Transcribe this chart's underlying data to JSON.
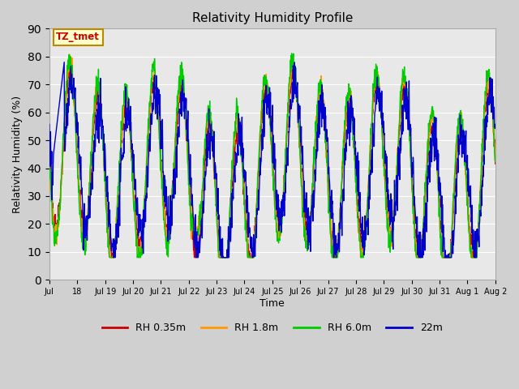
{
  "title": "Relativity Humidity Profile",
  "xlabel": "Time",
  "ylabel": "Relativity Humidity (%)",
  "ylim": [
    0,
    90
  ],
  "yticks": [
    0,
    10,
    20,
    30,
    40,
    50,
    60,
    70,
    80,
    90
  ],
  "annotation_text": "TZ_tmet",
  "annotation_color": "#cc0000",
  "annotation_bg": "#ffffcc",
  "annotation_border": "#bb8800",
  "line_colors": {
    "rh035": "#cc0000",
    "rh18": "#ff9900",
    "rh60": "#00cc00",
    "rh22m": "#0000cc"
  },
  "legend_labels": [
    "RH 0.35m",
    "RH 1.8m",
    "RH 6.0m",
    "22m"
  ],
  "fig_bg": "#d0d0d0",
  "plot_bg": "#e8e8e8",
  "x_tick_labels": [
    "Jul",
    "18",
    "Jul 19",
    "Jul 20",
    "Jul 21",
    "Jul 22",
    "Jul 23",
    "Jul 24",
    "Jul 25",
    "Jul 26",
    "Jul 27",
    "Jul 28",
    "Jul 29",
    "Jul 30",
    "Jul 31",
    "Aug 1",
    "Aug 2"
  ],
  "figsize": [
    6.4,
    4.8
  ],
  "dpi": 100
}
